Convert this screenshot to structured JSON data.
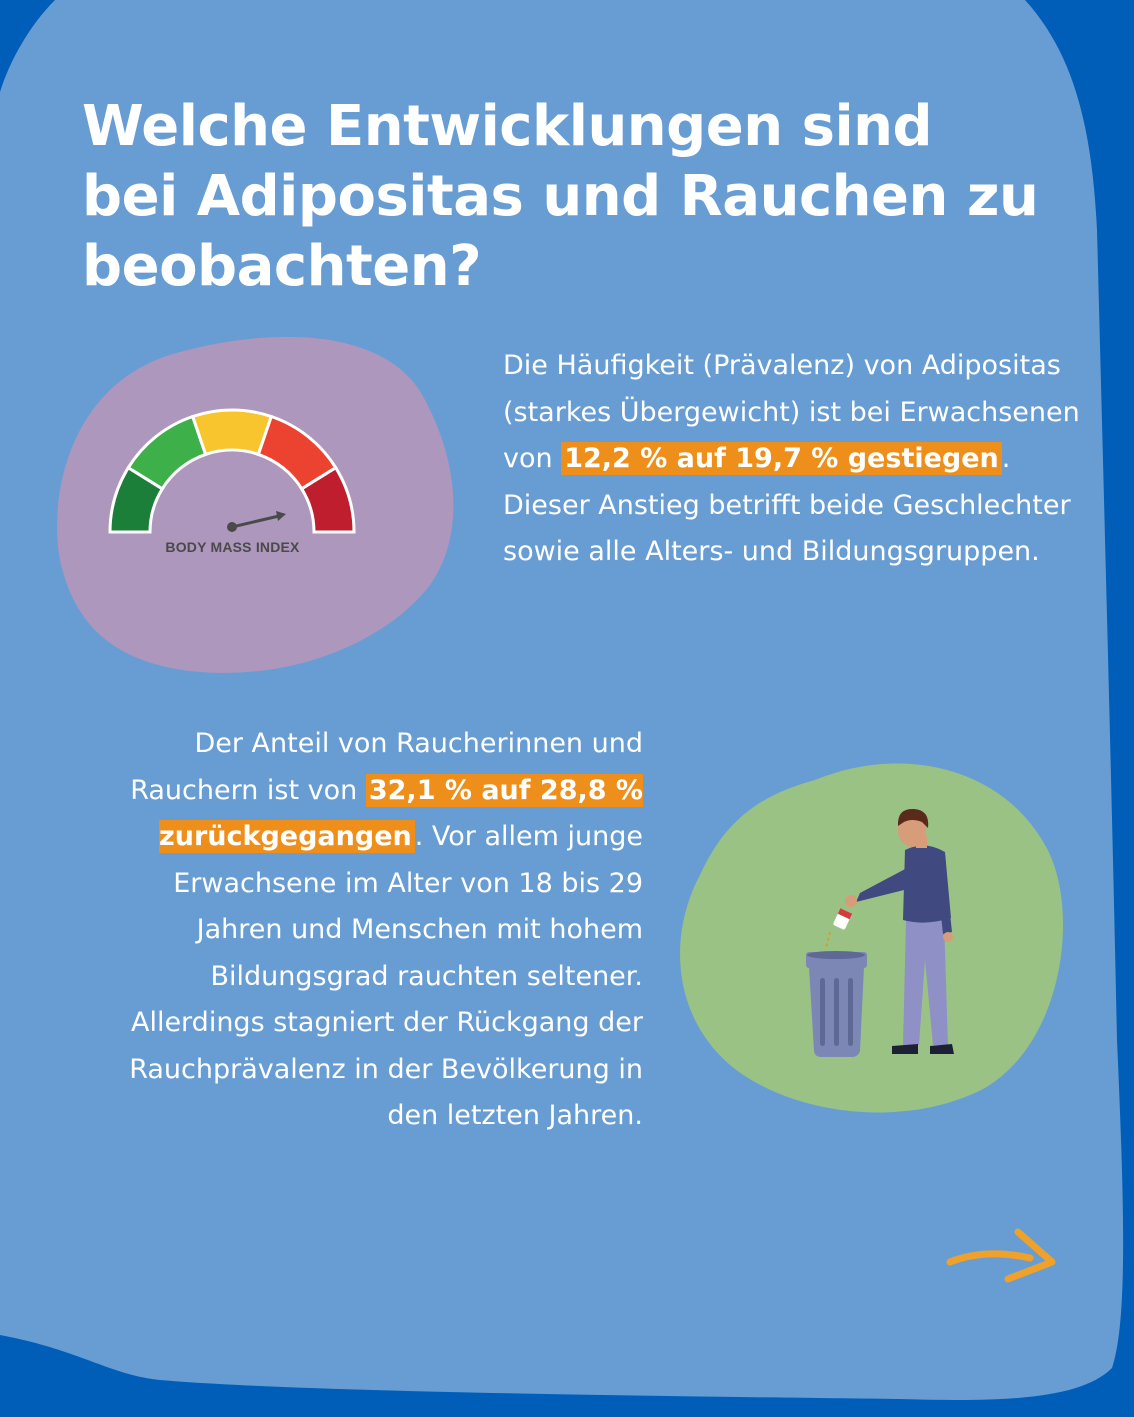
{
  "title": "Welche Entwicklungen sind bei Adipositas und Rauchen zu beobachten?",
  "section_adipositas": {
    "text_before": "Die Häufigkeit (Prävalenz) von Adipositas (starkes Übergewicht) ist bei Erwachsenen von ",
    "highlight": "12,2 % auf 19,7 % gestiegen",
    "text_after": ". Dieser Anstieg betrifft beide Geschlechter sowie alle Alters- und Bildungsgruppen.",
    "gauge_label": "BODY MASS INDEX"
  },
  "section_rauchen": {
    "text_before": "Der Anteil von Raucherinnen und Rauchern ist von ",
    "highlight": "32,1 % auf 28,8 % zurückgegangen",
    "text_after": ". Vor allem junge Erwachsene im Alter von 18 bis 29 Jahren und Menschen mit hohem Bildungsgrad rauchten seltener. Allerdings stagniert der Rückgang der Rauchprävalenz in der Bevölkerung in den letzten Jahren."
  },
  "colors": {
    "page_blue": "#005eb8",
    "panel_blue": "#689dd4",
    "highlight_orange": "#ee8f1c",
    "blob_purple": "#ad97bd",
    "blob_green": "#9bc285",
    "gauge_segments": [
      "#1b7f3a",
      "#3db04a",
      "#f9c52f",
      "#ec4330",
      "#be1e2d"
    ]
  },
  "icons": [
    "bmi-gauge-icon",
    "person-trash-icon",
    "next-arrow-icon"
  ]
}
